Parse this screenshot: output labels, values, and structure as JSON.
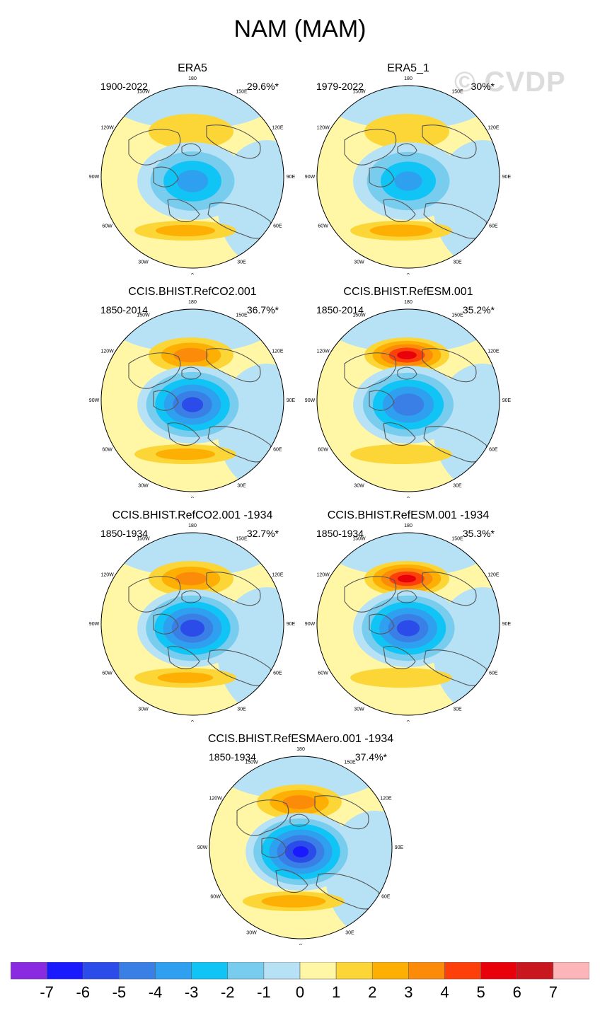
{
  "title": "NAM (MAM)",
  "watermark": "© CVDP",
  "panels": [
    {
      "title": "ERA5",
      "years": "1900-2022",
      "pct": "29.6%*",
      "warm_lobe": 0.5,
      "cold": 3.6,
      "atl_lobe": 1.6
    },
    {
      "title": "ERA5_1",
      "years": "1979-2022",
      "pct": "30%*",
      "warm_lobe": 0.8,
      "cold": 3.4,
      "atl_lobe": 1.8
    },
    {
      "title": "CCIS.BHIST.RefCO2.001",
      "years": "1850-2014",
      "pct": "36.7%*",
      "warm_lobe": 2.8,
      "cold": 5.6,
      "atl_lobe": 1.6
    },
    {
      "title": "CCIS.BHIST.RefESM.001",
      "years": "1850-2014",
      "pct": "35.2%*",
      "warm_lobe": 4.6,
      "cold": 5.0,
      "atl_lobe": 0.6
    },
    {
      "title": "CCIS.BHIST.RefCO2.001 -1934",
      "years": "1850-1934",
      "pct": "32.7%*",
      "warm_lobe": 2.6,
      "cold": 5.8,
      "atl_lobe": 1.4
    },
    {
      "title": "CCIS.BHIST.RefESM.001 -1934",
      "years": "1850-1934",
      "pct": "35.3%*",
      "warm_lobe": 4.5,
      "cold": 5.7,
      "atl_lobe": 0.5
    },
    {
      "title": "CCIS.BHIST.RefESMAero.001 -1934",
      "years": "1850-1934",
      "pct": "37.4%*",
      "warm_lobe": 2.7,
      "cold": 6.4,
      "atl_lobe": 1.9
    }
  ],
  "lon_labels": [
    "180",
    "150E",
    "120E",
    "90E",
    "60E",
    "30E",
    "0",
    "30W",
    "60W",
    "90W",
    "120W",
    "150W"
  ],
  "colorbar": {
    "colors": [
      "#8a2be2",
      "#1a1aff",
      "#2b4ce8",
      "#3a7fe6",
      "#2fa0ef",
      "#10c4f5",
      "#78cdee",
      "#b7e2f6",
      "#fff7a6",
      "#fcd537",
      "#fdb003",
      "#fd8b0a",
      "#fd3f0a",
      "#e8000b",
      "#c8171f",
      "#fcb5b8"
    ],
    "labels": [
      "-7",
      "-6",
      "-5",
      "-4",
      "-3",
      "-2",
      "-1",
      "0",
      "1",
      "2",
      "3",
      "4",
      "5",
      "6",
      "7"
    ]
  }
}
